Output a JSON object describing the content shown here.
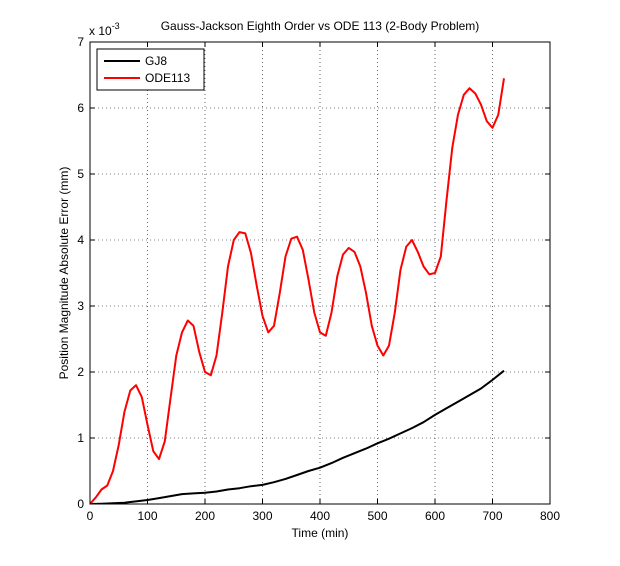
{
  "chart_data": {
    "type": "line",
    "title": "Gauss-Jackson Eighth Order vs ODE 113 (2-Body Problem)",
    "xlabel": "Time (min)",
    "ylabel": "Position Magnitude Absolute Error (mm)",
    "y_exponent_label": "x 10",
    "y_exponent_power": "-3",
    "xlim": [
      0,
      800
    ],
    "ylim": [
      0,
      7
    ],
    "xticks": [
      0,
      100,
      200,
      300,
      400,
      500,
      600,
      700,
      800
    ],
    "yticks": [
      0,
      1,
      2,
      3,
      4,
      5,
      6,
      7
    ],
    "grid": true,
    "legend_position": "top-left",
    "series": [
      {
        "name": "GJ8",
        "color": "#000000",
        "x": [
          0,
          20,
          40,
          60,
          80,
          100,
          120,
          140,
          160,
          180,
          200,
          220,
          240,
          260,
          280,
          300,
          320,
          340,
          360,
          380,
          400,
          420,
          440,
          460,
          480,
          500,
          520,
          540,
          560,
          580,
          600,
          620,
          640,
          660,
          680,
          700,
          720
        ],
        "y": [
          0.0,
          0.005,
          0.01,
          0.02,
          0.04,
          0.06,
          0.09,
          0.12,
          0.15,
          0.16,
          0.17,
          0.19,
          0.22,
          0.24,
          0.27,
          0.29,
          0.33,
          0.38,
          0.44,
          0.5,
          0.55,
          0.62,
          0.7,
          0.77,
          0.84,
          0.92,
          0.99,
          1.07,
          1.15,
          1.24,
          1.35,
          1.45,
          1.55,
          1.65,
          1.75,
          1.88,
          2.02
        ]
      },
      {
        "name": "ODE113",
        "color": "#ff0000",
        "x": [
          0,
          10,
          20,
          30,
          40,
          50,
          60,
          70,
          80,
          90,
          100,
          110,
          120,
          130,
          140,
          150,
          160,
          170,
          180,
          190,
          200,
          210,
          220,
          230,
          240,
          250,
          260,
          270,
          280,
          290,
          300,
          310,
          320,
          330,
          340,
          350,
          360,
          370,
          380,
          390,
          400,
          410,
          420,
          430,
          440,
          450,
          460,
          470,
          480,
          490,
          500,
          510,
          520,
          530,
          540,
          550,
          560,
          570,
          580,
          590,
          600,
          610,
          620,
          630,
          640,
          650,
          660,
          670,
          680,
          690,
          700,
          710,
          720
        ],
        "y": [
          0.0,
          0.1,
          0.22,
          0.28,
          0.5,
          0.9,
          1.4,
          1.72,
          1.8,
          1.62,
          1.2,
          0.8,
          0.68,
          0.95,
          1.6,
          2.25,
          2.6,
          2.78,
          2.7,
          2.3,
          2.0,
          1.95,
          2.25,
          2.9,
          3.6,
          4.0,
          4.12,
          4.1,
          3.8,
          3.3,
          2.85,
          2.6,
          2.7,
          3.2,
          3.75,
          4.02,
          4.05,
          3.85,
          3.4,
          2.9,
          2.6,
          2.55,
          2.9,
          3.45,
          3.78,
          3.88,
          3.82,
          3.6,
          3.2,
          2.7,
          2.4,
          2.25,
          2.4,
          2.9,
          3.55,
          3.9,
          4.0,
          3.82,
          3.6,
          3.48,
          3.5,
          3.75,
          4.6,
          5.4,
          5.9,
          6.2,
          6.3,
          6.22,
          6.05,
          5.8,
          5.7,
          5.9,
          6.45
        ]
      }
    ]
  }
}
